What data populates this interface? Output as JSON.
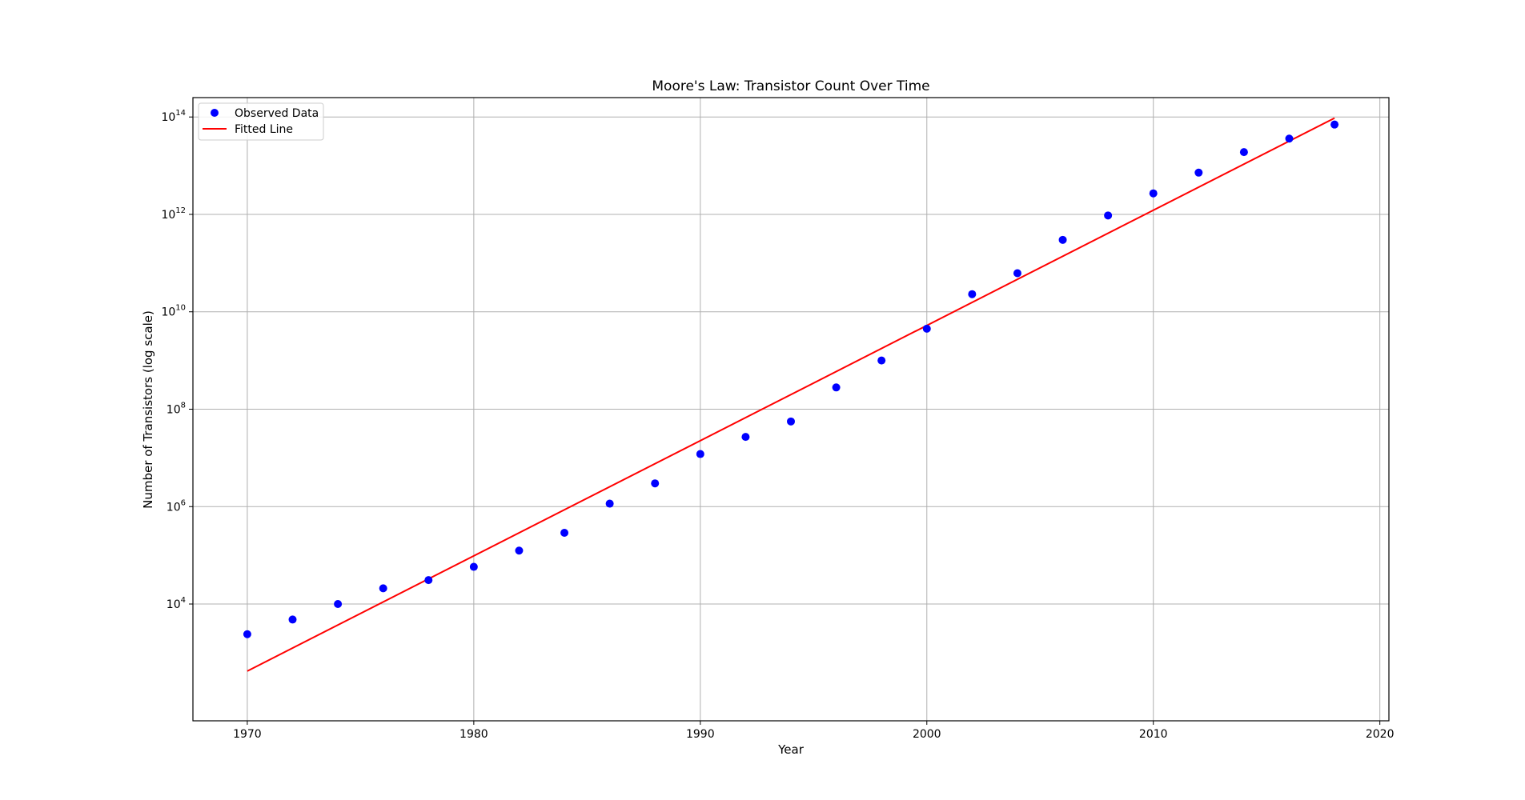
{
  "chart_data": {
    "type": "scatter",
    "title": "Moore's Law: Transistor Count Over Time",
    "xlabel": "Year",
    "ylabel": "Number of Transistors (log scale)",
    "xlim": [
      1967.6,
      2020.4
    ],
    "ylim": [
      40.0,
      250000000000000.0
    ],
    "yscale": "log",
    "grid": true,
    "legend_position": "top-left",
    "x_ticks": [
      {
        "value": 1970,
        "label": "1970"
      },
      {
        "value": 1980,
        "label": "1980"
      },
      {
        "value": 1990,
        "label": "1990"
      },
      {
        "value": 2000,
        "label": "2000"
      },
      {
        "value": 2010,
        "label": "2010"
      },
      {
        "value": 2020,
        "label": "2020"
      }
    ],
    "y_ticks": [
      {
        "value": 10000,
        "base": "10",
        "exponent": "4"
      },
      {
        "value": 1000000,
        "base": "10",
        "exponent": "6"
      },
      {
        "value": 100000000,
        "base": "10",
        "exponent": "8"
      },
      {
        "value": 10000000000,
        "base": "10",
        "exponent": "10"
      },
      {
        "value": 1000000000000,
        "base": "10",
        "exponent": "12"
      },
      {
        "value": 100000000000000,
        "base": "10",
        "exponent": "14"
      }
    ],
    "series": [
      {
        "name": "Observed Data",
        "kind": "scatter",
        "color": "#0000ff",
        "points": [
          {
            "x": 1970,
            "y": 2400
          },
          {
            "x": 1972,
            "y": 4800
          },
          {
            "x": 1974,
            "y": 10000
          },
          {
            "x": 1976,
            "y": 21000
          },
          {
            "x": 1978,
            "y": 31000
          },
          {
            "x": 1980,
            "y": 58000
          },
          {
            "x": 1982,
            "y": 125000
          },
          {
            "x": 1984,
            "y": 290000
          },
          {
            "x": 1986,
            "y": 1150000
          },
          {
            "x": 1988,
            "y": 3000000
          },
          {
            "x": 1990,
            "y": 12000000
          },
          {
            "x": 1992,
            "y": 27000000
          },
          {
            "x": 1994,
            "y": 56000000
          },
          {
            "x": 1996,
            "y": 280000000
          },
          {
            "x": 1998,
            "y": 1000000000
          },
          {
            "x": 2000,
            "y": 4500000000
          },
          {
            "x": 2002,
            "y": 23000000000
          },
          {
            "x": 2004,
            "y": 62000000000
          },
          {
            "x": 2006,
            "y": 300000000000
          },
          {
            "x": 2008,
            "y": 950000000000
          },
          {
            "x": 2010,
            "y": 2700000000000
          },
          {
            "x": 2012,
            "y": 7200000000000
          },
          {
            "x": 2014,
            "y": 19000000000000
          },
          {
            "x": 2016,
            "y": 36000000000000
          },
          {
            "x": 2018,
            "y": 70000000000000
          }
        ]
      },
      {
        "name": "Fitted Line",
        "kind": "line",
        "color": "#ff0000",
        "points": [
          {
            "x": 1970,
            "y": 420
          },
          {
            "x": 2018,
            "y": 95000000000000
          }
        ]
      }
    ]
  }
}
